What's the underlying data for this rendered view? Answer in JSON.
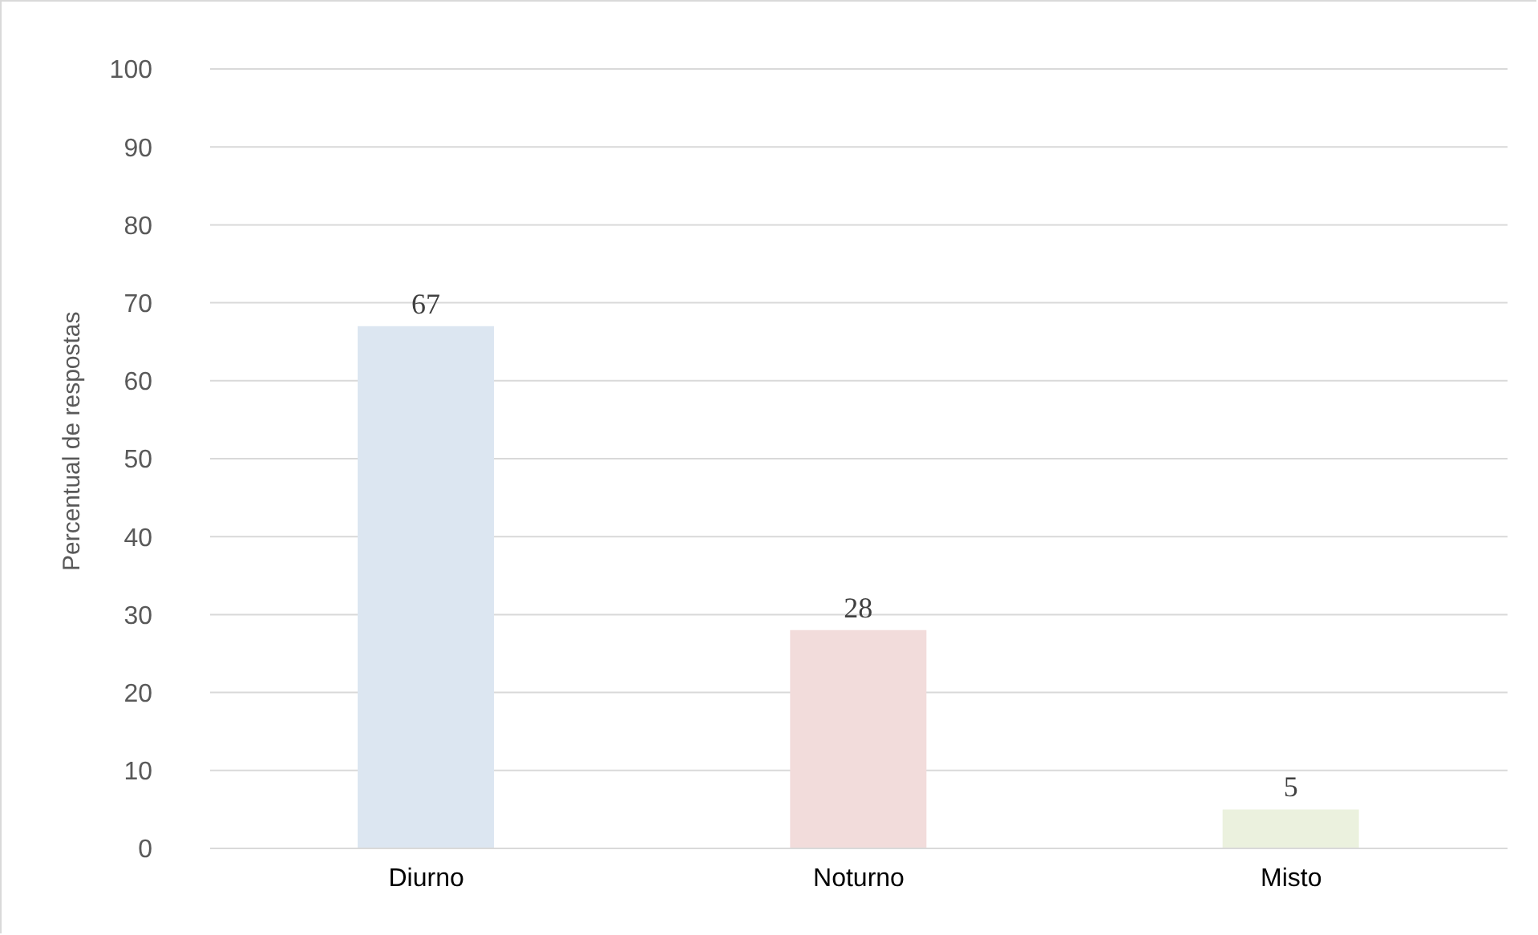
{
  "chart_data": {
    "type": "bar",
    "ylabel": "Percentual de respostas",
    "categories": [
      "Diurno",
      "Noturno",
      "Misto"
    ],
    "values": [
      67,
      28,
      5
    ],
    "colors": [
      "#dce6f1",
      "#f2dcdb",
      "#ebf1de"
    ],
    "ylim": [
      0,
      100
    ],
    "yticks": [
      0,
      10,
      20,
      30,
      40,
      50,
      60,
      70,
      80,
      90,
      100
    ],
    "grid": "y",
    "data_labels": true
  }
}
